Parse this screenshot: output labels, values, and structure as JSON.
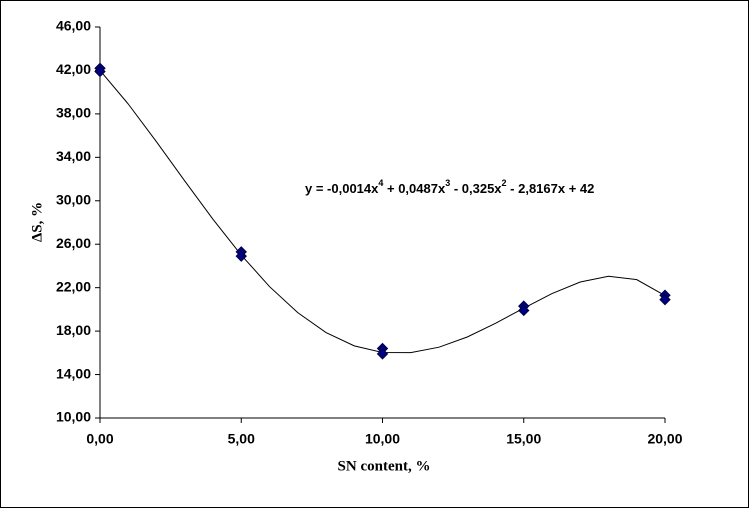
{
  "chart_data": {
    "type": "scatter",
    "x_label": "SN content, %",
    "y_label": "ΔS, %",
    "equation": [
      "y = -0,0014x",
      "4",
      " + 0,0487x",
      "3",
      " - 0,325x",
      "2",
      " - 2,8167x + 42"
    ],
    "xlim": [
      0,
      20
    ],
    "xticks": [
      {
        "value": 0,
        "label": "0,00"
      },
      {
        "value": 5,
        "label": "5,00"
      },
      {
        "value": 10,
        "label": "10,00"
      },
      {
        "value": 15,
        "label": "15,00"
      },
      {
        "value": 20,
        "label": "20,00"
      }
    ],
    "ylim": [
      10,
      46
    ],
    "yticks": [
      {
        "value": 10,
        "label": "10,00"
      },
      {
        "value": 14,
        "label": "14,00"
      },
      {
        "value": 18,
        "label": "18,00"
      },
      {
        "value": 22,
        "label": "22,00"
      },
      {
        "value": 26,
        "label": "26,00"
      },
      {
        "value": 30,
        "label": "30,00"
      },
      {
        "value": 34,
        "label": "34,00"
      },
      {
        "value": 38,
        "label": "38,00"
      },
      {
        "value": 42,
        "label": "42,00"
      },
      {
        "value": 46,
        "label": "46,00"
      }
    ],
    "grid": false,
    "series": [
      {
        "color": "#000080",
        "x": [
          0,
          0,
          5,
          5,
          10,
          10,
          15,
          15,
          20,
          20
        ],
        "values": [
          42.2,
          41.9,
          25.3,
          24.9,
          16.4,
          15.9,
          20.3,
          19.9,
          21.3,
          20.9
        ]
      }
    ],
    "trendline": {
      "color": "#000000",
      "x": [
        0,
        1,
        2,
        3,
        4,
        5,
        6,
        7,
        8,
        9,
        10,
        11,
        12,
        13,
        14,
        15,
        16,
        17,
        18,
        19,
        20
      ],
      "values": [
        42,
        38.91,
        35.43,
        31.83,
        28.29,
        25.0,
        22.1,
        19.7,
        17.87,
        16.64,
        16.03,
        16.02,
        16.52,
        17.46,
        18.72,
        20.11,
        21.46,
        22.52,
        23.05,
        22.74,
        21.27
      ]
    }
  }
}
